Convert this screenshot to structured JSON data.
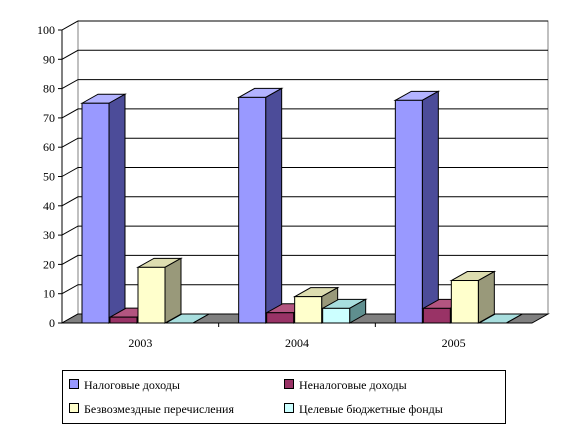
{
  "chart_data": {
    "type": "bar",
    "categories": [
      "2003",
      "2004",
      "2005"
    ],
    "series": [
      {
        "name": "Налоговые доходы",
        "values": [
          75,
          77,
          76
        ],
        "color": "#9999ff",
        "side": "#4c4c99",
        "top": "#b3b3ff"
      },
      {
        "name": "Неналоговые доходы",
        "values": [
          2,
          3.5,
          5
        ],
        "color": "#993366",
        "side": "#561c39",
        "top": "#b35580"
      },
      {
        "name": "Безвозмездные перечисления",
        "values": [
          19,
          9,
          14.5
        ],
        "color": "#ffffcc",
        "side": "#99997a",
        "top": "#ddddb0"
      },
      {
        "name": "Целевые бюджетные фонды",
        "values": [
          0,
          5,
          0
        ],
        "color": "#ccffff",
        "side": "#5f8f8f",
        "top": "#a8dede"
      }
    ],
    "yticks": [
      "0",
      "10",
      "20",
      "30",
      "40",
      "50",
      "60",
      "70",
      "80",
      "90",
      "100"
    ],
    "ylim": [
      0,
      100
    ],
    "grid": true,
    "legend_position": "bottom",
    "xlabel": "",
    "ylabel": "",
    "title": ""
  }
}
